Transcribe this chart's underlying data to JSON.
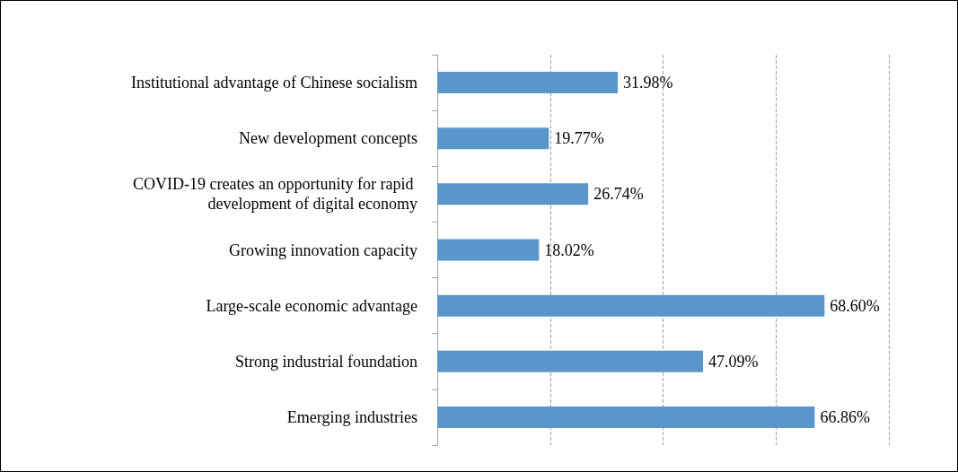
{
  "chart_data": {
    "type": "bar",
    "orientation": "horizontal",
    "categories": [
      "Institutional advantage of Chinese socialism",
      "New development concepts",
      "COVID-19 creates an opportunity for rapid development of digital economy",
      "Growing innovation capacity",
      "Large-scale economic advantage",
      "Strong industrial foundation",
      "Emerging industries"
    ],
    "values": [
      31.98,
      19.77,
      26.74,
      18.02,
      68.6,
      47.09,
      66.86
    ],
    "value_labels": [
      "31.98%",
      "19.77%",
      "26.74%",
      "18.02%",
      "68.60%",
      "47.09%",
      "66.86%"
    ],
    "color": "#5b96cb",
    "xlim": [
      0,
      80
    ],
    "xticks": [
      {
        "value": 0,
        "label": null
      },
      {
        "value": 20,
        "label": null
      },
      {
        "value": 40,
        "label": null
      },
      {
        "value": 60,
        "label": null
      },
      {
        "value": 80,
        "label": null
      }
    ],
    "grid": "x",
    "tick_labels": "y"
  }
}
